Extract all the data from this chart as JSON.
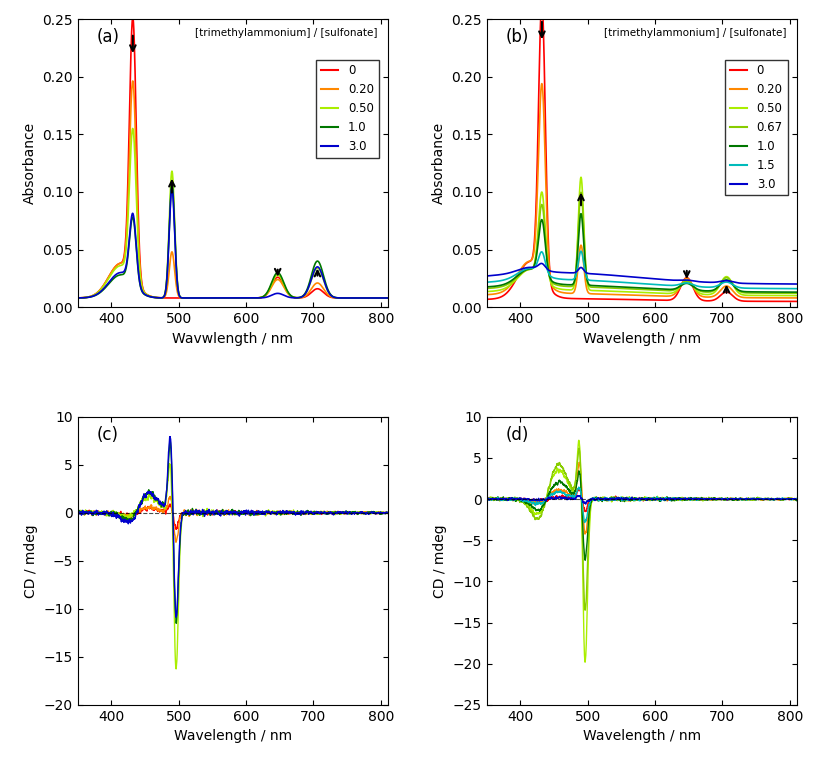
{
  "panel_a": {
    "label": "(a)",
    "xlabel": "Wavwlength / nm",
    "ylabel": "Absorbance",
    "xlim": [
      350,
      810
    ],
    "ylim": [
      0,
      0.25
    ],
    "yticks": [
      0,
      0.05,
      0.1,
      0.15,
      0.2,
      0.25
    ],
    "legend_title": "[trimethylammonium] / [sulfonate]",
    "series": [
      {
        "ratio": "0",
        "color": "#ff0000"
      },
      {
        "ratio": "0.20",
        "color": "#ff8800"
      },
      {
        "ratio": "0.50",
        "color": "#aaee00"
      },
      {
        "ratio": "1.0",
        "color": "#007700"
      },
      {
        "ratio": "3.0",
        "color": "#0000cc"
      }
    ]
  },
  "panel_b": {
    "label": "(b)",
    "xlabel": "Wavelength / nm",
    "ylabel": "Absorbance",
    "xlim": [
      350,
      810
    ],
    "ylim": [
      0,
      0.25
    ],
    "yticks": [
      0,
      0.05,
      0.1,
      0.15,
      0.2,
      0.25
    ],
    "legend_title": "[trimethylammonium] / [sulfonate]",
    "series": [
      {
        "ratio": "0",
        "color": "#ff0000"
      },
      {
        "ratio": "0.20",
        "color": "#ff8800"
      },
      {
        "ratio": "0.50",
        "color": "#aaee00"
      },
      {
        "ratio": "0.67",
        "color": "#88cc00"
      },
      {
        "ratio": "1.0",
        "color": "#007700"
      },
      {
        "ratio": "1.5",
        "color": "#00bbbb"
      },
      {
        "ratio": "3.0",
        "color": "#0000cc"
      }
    ]
  },
  "panel_c": {
    "label": "(c)",
    "xlabel": "Wavelength / nm",
    "ylabel": "CD / mdeg",
    "xlim": [
      350,
      810
    ],
    "ylim": [
      -20,
      10
    ],
    "yticks": [
      -20,
      -15,
      -10,
      -5,
      0,
      5,
      10
    ],
    "series": [
      {
        "ratio": "0",
        "color": "#ff0000"
      },
      {
        "ratio": "0.20",
        "color": "#ff8800"
      },
      {
        "ratio": "0.50",
        "color": "#aaee00"
      },
      {
        "ratio": "1.0",
        "color": "#007700"
      },
      {
        "ratio": "3.0",
        "color": "#0000cc"
      }
    ]
  },
  "panel_d": {
    "label": "(d)",
    "xlabel": "Wavelength / nm",
    "ylabel": "CD / mdeg",
    "xlim": [
      350,
      810
    ],
    "ylim": [
      -25,
      10
    ],
    "yticks": [
      -25,
      -20,
      -15,
      -10,
      -5,
      0,
      5,
      10
    ],
    "series": [
      {
        "ratio": "0",
        "color": "#ff0000"
      },
      {
        "ratio": "0.20",
        "color": "#ff8800"
      },
      {
        "ratio": "0.50",
        "color": "#aaee00"
      },
      {
        "ratio": "0.67",
        "color": "#88cc00"
      },
      {
        "ratio": "1.0",
        "color": "#007700"
      },
      {
        "ratio": "1.5",
        "color": "#00bbbb"
      },
      {
        "ratio": "3.0",
        "color": "#0000cc"
      }
    ]
  }
}
